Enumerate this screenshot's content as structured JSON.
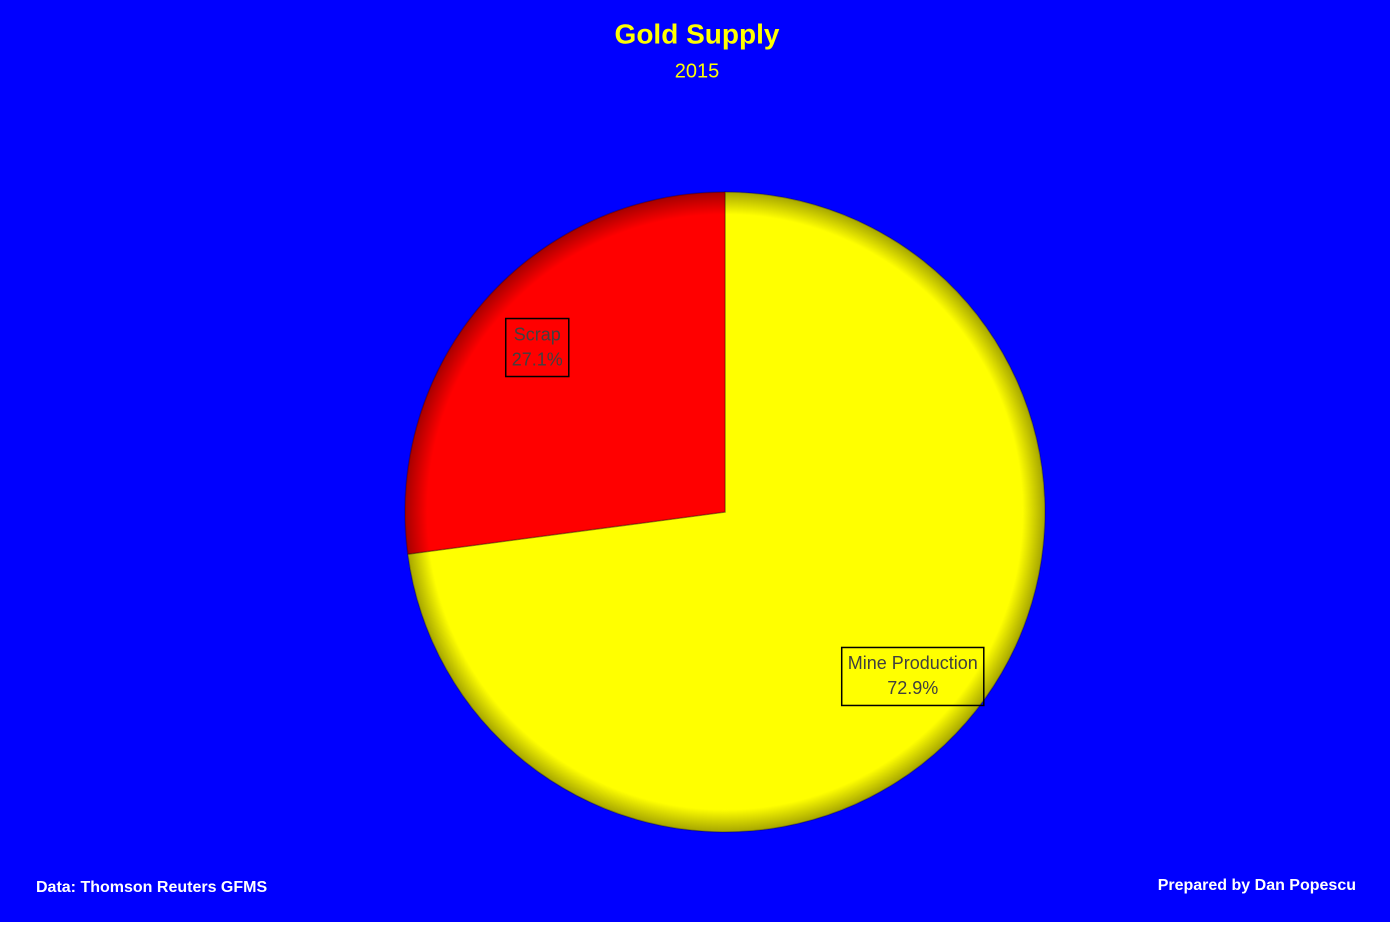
{
  "chart_data": {
    "type": "pie",
    "title": "Gold Supply",
    "subtitle": "2015",
    "categories": [
      "Mine Production",
      "Scrap"
    ],
    "values": [
      72.9,
      27.1
    ],
    "value_labels": [
      "72.9%",
      "27.1%"
    ],
    "colors": [
      "#ffff00",
      "#ff0000"
    ],
    "source": "Data: Thomson Reuters GFMS",
    "credit": "Prepared by Dan Popescu"
  }
}
